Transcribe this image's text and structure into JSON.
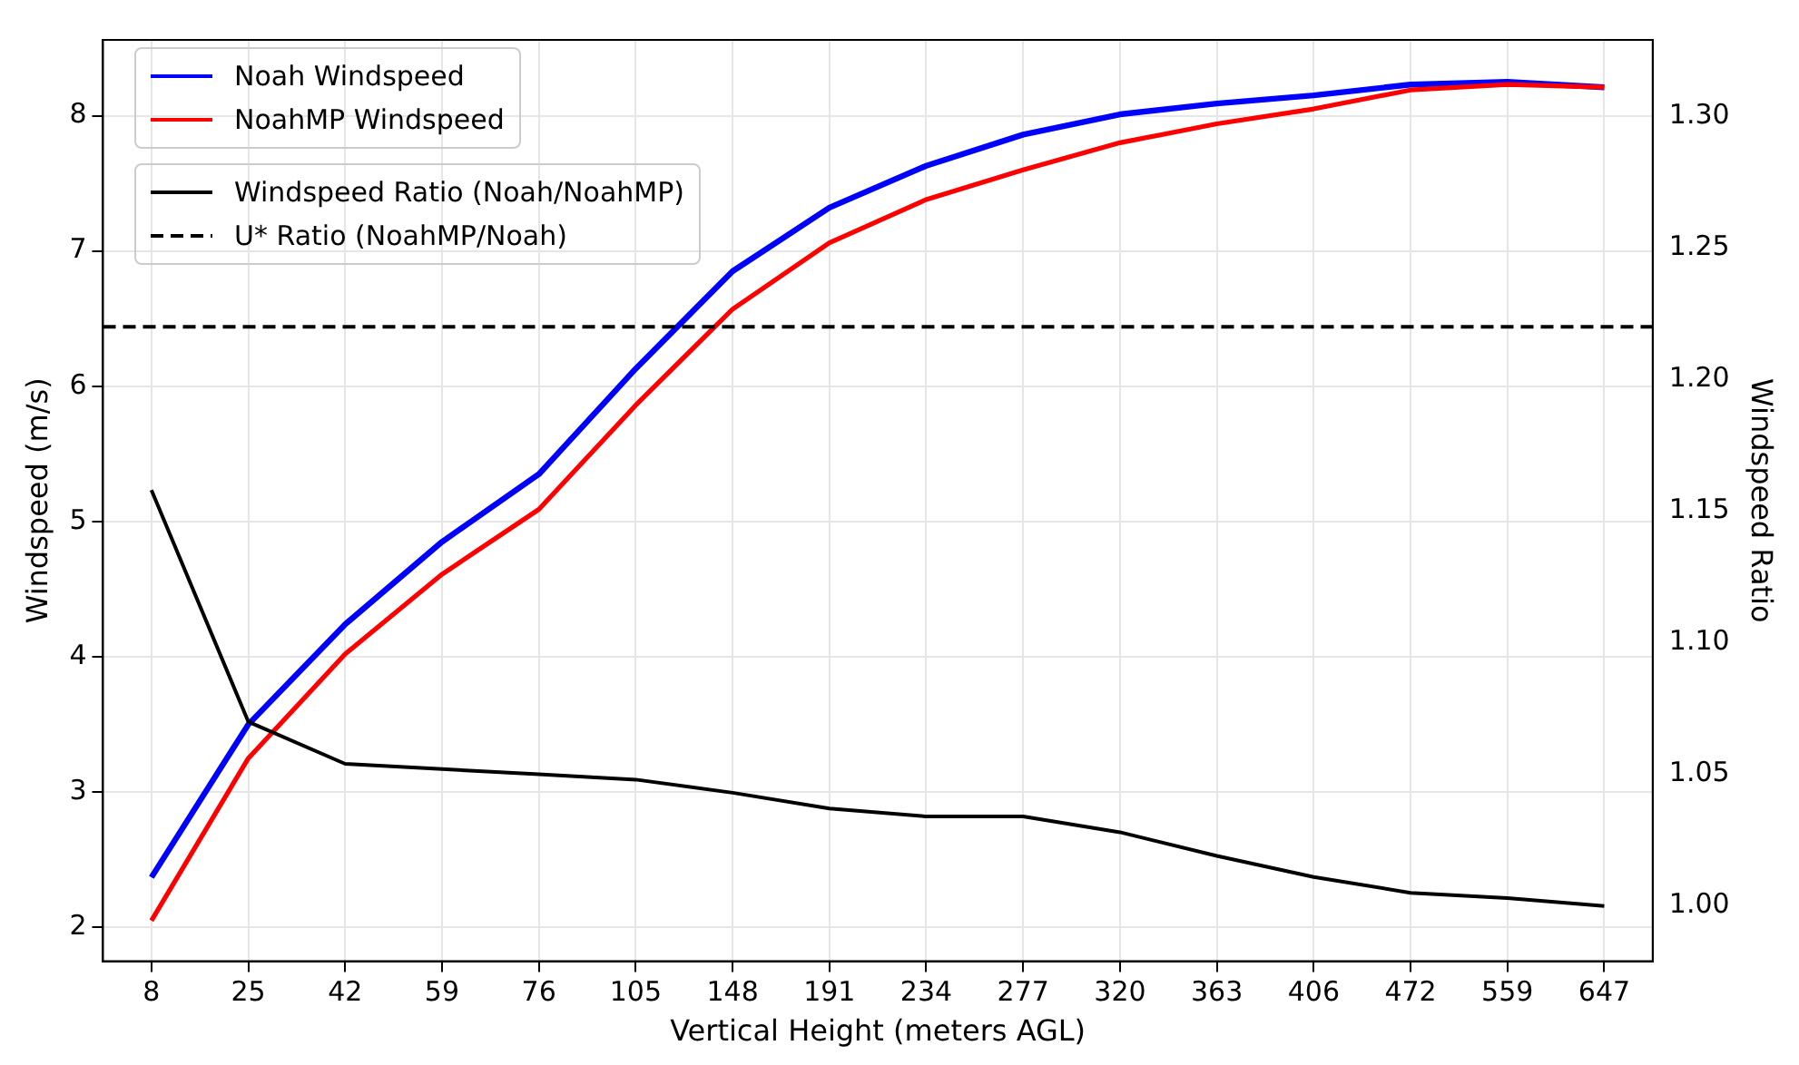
{
  "chart_data": {
    "type": "line",
    "xlabel": "Vertical Height (meters AGL)",
    "ylabel": "Windspeed (m/s)",
    "y2label": "Windspeed Ratio",
    "categories": [
      "8",
      "25",
      "42",
      "59",
      "76",
      "105",
      "148",
      "191",
      "234",
      "277",
      "320",
      "363",
      "406",
      "472",
      "559",
      "647"
    ],
    "series": [
      {
        "name": "Noah Windspeed",
        "color": "#0000ff",
        "values": [
          2.37,
          3.5,
          4.24,
          4.85,
          5.35,
          6.13,
          6.85,
          7.32,
          7.63,
          7.86,
          8.01,
          8.09,
          8.15,
          8.23,
          8.25,
          8.21
        ]
      },
      {
        "name": "NoahMP Windspeed",
        "color": "#ff0000",
        "values": [
          2.05,
          3.25,
          4.02,
          4.61,
          5.09,
          5.86,
          6.57,
          7.06,
          7.38,
          7.6,
          7.8,
          7.94,
          8.05,
          8.19,
          8.23,
          8.21
        ]
      },
      {
        "name": "Windspeed Ratio (Noah/NoahMP)",
        "color": "#000000",
        "axis": "y2",
        "values": [
          1.158,
          1.07,
          1.054,
          1.052,
          1.05,
          1.048,
          1.043,
          1.037,
          1.034,
          1.034,
          1.028,
          1.019,
          1.011,
          1.005,
          1.003,
          1.0
        ]
      }
    ],
    "ref_lines": [
      {
        "axis": "y2",
        "value": 1.22,
        "label": "U* Ratio (NoahMP/Noah)",
        "color": "#000000",
        "line_style": "dashed"
      }
    ],
    "ylim": [
      1.75,
      8.56
    ],
    "yticks": [
      2,
      3,
      4,
      5,
      6,
      7,
      8
    ],
    "y2lim": [
      0.979,
      1.329
    ],
    "y2ticks": [
      {
        "value": 1.0,
        "label": "1.00"
      },
      {
        "value": 1.05,
        "label": "1.05"
      },
      {
        "value": 1.1,
        "label": "1.10"
      },
      {
        "value": 1.15,
        "label": "1.15"
      },
      {
        "value": 1.2,
        "label": "1.20"
      },
      {
        "value": 1.25,
        "label": "1.25"
      },
      {
        "value": 1.3,
        "label": "1.30"
      }
    ],
    "grid": true,
    "legend": "top left",
    "marker": "none",
    "line_style": "solid"
  }
}
